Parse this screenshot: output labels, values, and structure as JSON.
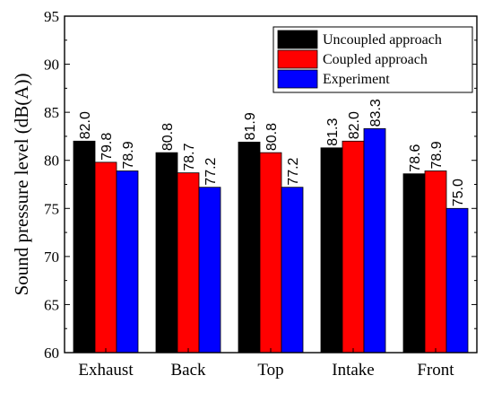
{
  "chart_data": {
    "type": "bar",
    "title": "",
    "xlabel": "",
    "ylabel": "Sound pressure level (dB(A))",
    "ylim": [
      60,
      95
    ],
    "yticks": [
      60,
      65,
      70,
      75,
      80,
      85,
      90,
      95
    ],
    "grid": false,
    "legend_position": "top-right",
    "categories": [
      "Exhaust",
      "Back",
      "Top",
      "Intake",
      "Front"
    ],
    "series": [
      {
        "name": "Uncoupled approach",
        "color": "#000000",
        "values": [
          82.0,
          80.8,
          81.9,
          81.3,
          78.6
        ],
        "labels": [
          "82.0",
          "80.8",
          "81.9",
          "81.3",
          "78.6"
        ]
      },
      {
        "name": "Coupled approach",
        "color": "#ff0000",
        "values": [
          79.8,
          78.7,
          80.8,
          82.0,
          78.9
        ],
        "labels": [
          "79.8",
          "78.7",
          "80.8",
          "82.0",
          "78.9"
        ]
      },
      {
        "name": "Experiment",
        "color": "#0000ff",
        "values": [
          78.9,
          77.2,
          77.2,
          83.3,
          75.0
        ],
        "labels": [
          "78.9",
          "77.2",
          "77.2",
          "83.3",
          "75.0"
        ]
      }
    ]
  }
}
